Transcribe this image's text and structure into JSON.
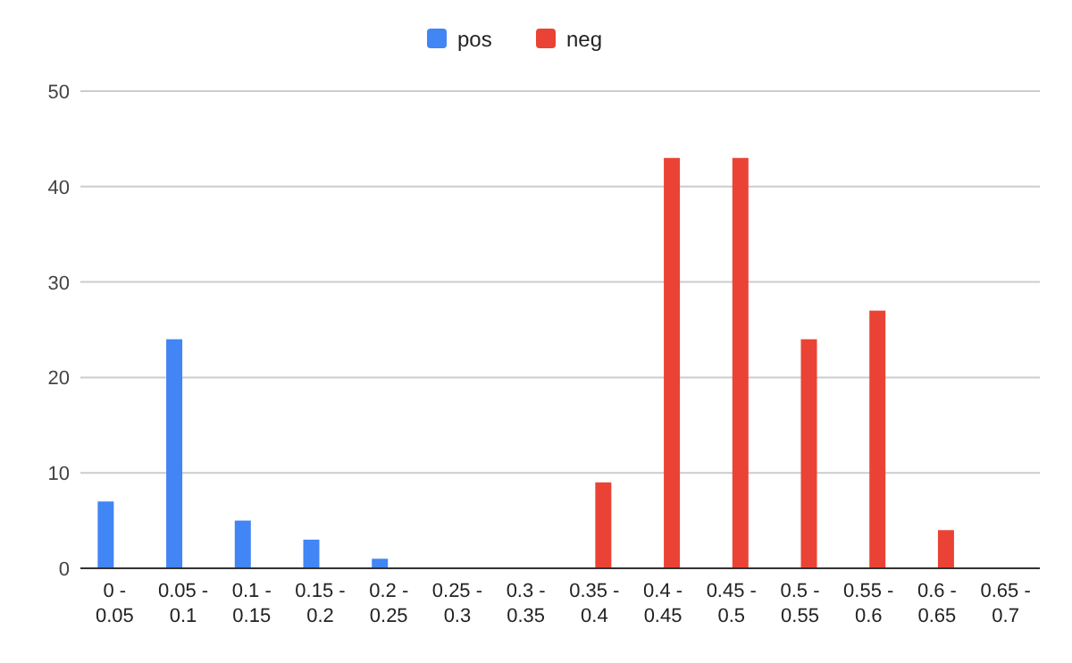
{
  "chart_data": {
    "type": "bar",
    "categories": [
      "0 - 0.05",
      "0.05 - 0.1",
      "0.1 - 0.15",
      "0.15 - 0.2",
      "0.2 - 0.25",
      "0.25 - 0.3",
      "0.3 - 0.35",
      "0.35 - 0.4",
      "0.4 - 0.45",
      "0.45 - 0.5",
      "0.5 - 0.55",
      "0.55 - 0.6",
      "0.6 - 0.65",
      "0.65 - 0.7"
    ],
    "series": [
      {
        "name": "pos",
        "color": "#4285f4",
        "values": [
          7,
          24,
          5,
          3,
          1,
          null,
          null,
          null,
          null,
          null,
          null,
          null,
          null,
          null
        ]
      },
      {
        "name": "neg",
        "color": "#ea4335",
        "values": [
          null,
          null,
          null,
          null,
          null,
          null,
          null,
          9,
          43,
          43,
          24,
          27,
          4,
          null
        ]
      }
    ],
    "ylim": [
      0,
      50
    ],
    "yticks": [
      0,
      10,
      20,
      30,
      40,
      50
    ],
    "grid": "y",
    "legend": "top"
  }
}
